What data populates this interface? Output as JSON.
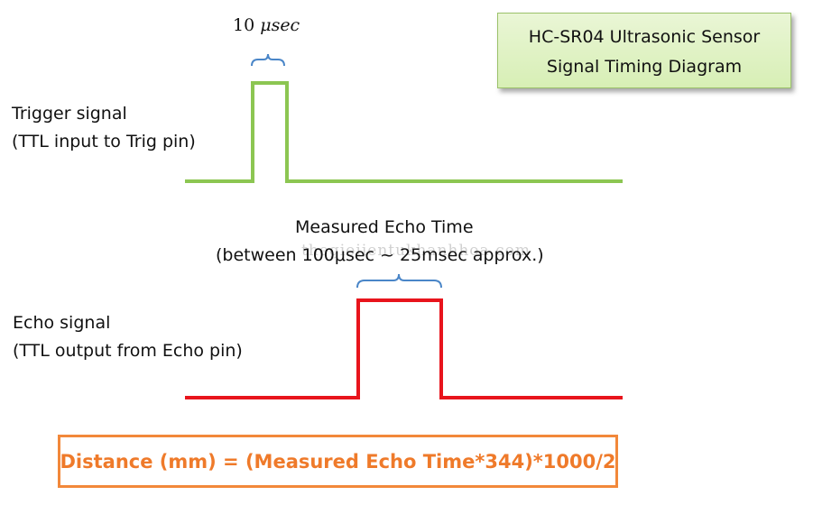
{
  "title": {
    "line1": "HC-SR04 Ultrasonic Sensor",
    "line2": "Signal Timing Diagram"
  },
  "trigger": {
    "pulse_width_value": "10 ",
    "pulse_width_unit": "μsec",
    "label_line1": "Trigger signal",
    "label_line2": "(TTL input to Trig pin)",
    "color": "#8cc652"
  },
  "echo": {
    "caption_line1": "Measured  Echo Time",
    "caption_line2": "(between 100μsec ~ 25msec approx.)",
    "label_line1": "Echo signal",
    "label_line2": "(TTL output from Echo pin)",
    "color": "#e8141c"
  },
  "watermark": "thegioiientukhanhhoa.com",
  "formula": {
    "text": "Distance (mm) = (Measured Echo Time*344)*1000/2",
    "color": "#ef7a2a"
  },
  "bracket_color": "#4a86c8"
}
